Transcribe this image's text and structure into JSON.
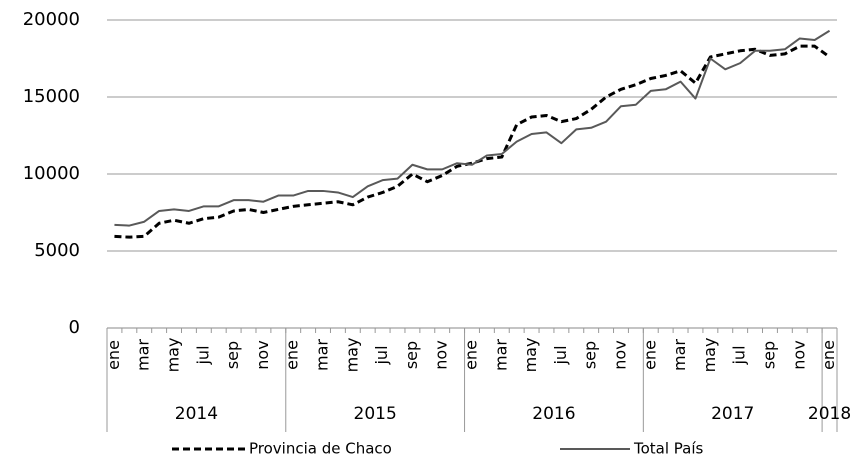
{
  "chart_data": {
    "type": "line",
    "categories": [
      "ene",
      null,
      "mar",
      null,
      "may",
      null,
      "jul",
      null,
      "sep",
      null,
      "nov",
      null,
      "ene",
      null,
      "mar",
      null,
      "may",
      null,
      "jul",
      null,
      "sep",
      null,
      "nov",
      null,
      "ene",
      null,
      "mar",
      null,
      "may",
      null,
      "jul",
      null,
      "sep",
      null,
      "nov",
      null,
      "ene",
      null,
      "mar",
      null,
      "may",
      null,
      "jul",
      null,
      "sep",
      null,
      "nov",
      null,
      "ene"
    ],
    "years": [
      "2014",
      "2015",
      "2016",
      "2017",
      "2018"
    ],
    "series": [
      {
        "name": "Provincia de Chaco",
        "color": "#000000",
        "dashed": true,
        "values": [
          5950,
          5900,
          5950,
          6800,
          7000,
          6800,
          7100,
          7200,
          7600,
          7700,
          7500,
          7700,
          7900,
          8000,
          8100,
          8200,
          8000,
          8500,
          8800,
          9200,
          10000,
          9500,
          9900,
          10500,
          10700,
          11000,
          11100,
          13200,
          13700,
          13800,
          13400,
          13600,
          14200,
          15000,
          15500,
          15800,
          16200,
          16400,
          16700,
          15900,
          17600,
          17800,
          18000,
          18100,
          17700,
          17800,
          18300,
          18300,
          17600
        ]
      },
      {
        "name": "Total País",
        "color": "#595959",
        "dashed": false,
        "values": [
          6700,
          6650,
          6900,
          7600,
          7700,
          7600,
          7900,
          7900,
          8300,
          8300,
          8200,
          8600,
          8600,
          8900,
          8900,
          8800,
          8500,
          9200,
          9600,
          9700,
          10600,
          10300,
          10300,
          10700,
          10600,
          11200,
          11300,
          12100,
          12600,
          12700,
          12000,
          12900,
          13000,
          13400,
          14400,
          14500,
          15400,
          15500,
          16000,
          14900,
          17500,
          16800,
          17200,
          18000,
          18000,
          18100,
          18800,
          18700,
          19300
        ]
      }
    ],
    "ylim": [
      0,
      20000
    ],
    "yticks": [
      0,
      5000,
      10000,
      15000,
      20000
    ],
    "grid": true,
    "legend": "bottom"
  }
}
